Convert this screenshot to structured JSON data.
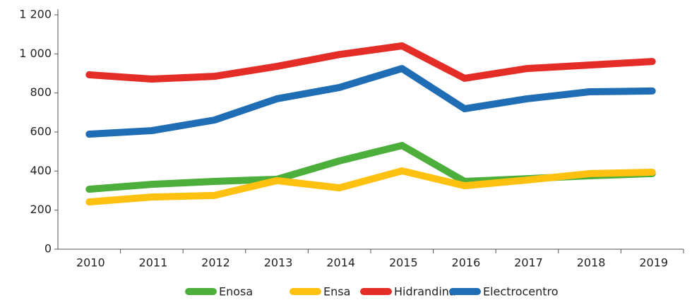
{
  "chart_data": {
    "type": "line",
    "categories": [
      "2010",
      "2011",
      "2012",
      "2013",
      "2014",
      "2015",
      "2016",
      "2017",
      "2018",
      "2019"
    ],
    "series": [
      {
        "name": "Enosa",
        "color": "#4cae3b",
        "values": [
          307,
          332,
          347,
          358,
          452,
          531,
          347,
          361,
          376,
          387
        ]
      },
      {
        "name": "Ensa",
        "color": "#fec10f",
        "values": [
          242,
          267,
          275,
          351,
          314,
          401,
          325,
          354,
          387,
          394
        ]
      },
      {
        "name": "Hidrandina",
        "color": "#e42d27",
        "values": [
          893,
          871,
          885,
          936,
          997,
          1041,
          875,
          925,
          943,
          961
        ]
      },
      {
        "name": "Electrocentro",
        "color": "#1f6db4",
        "values": [
          589,
          607,
          661,
          770,
          828,
          925,
          719,
          770,
          806,
          810
        ]
      }
    ],
    "ylim": [
      0,
      1200
    ],
    "yticks": [
      0,
      200,
      400,
      600,
      800,
      {
        "value": 1000,
        "label": "1 000"
      },
      {
        "value": 1200,
        "label": "1 200"
      }
    ],
    "legend": "bottom"
  }
}
